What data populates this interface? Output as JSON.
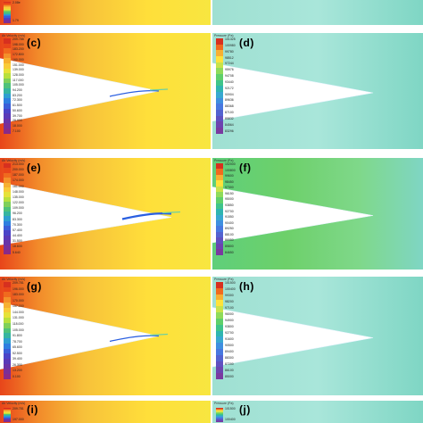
{
  "figure": {
    "panels": [
      {
        "id": "top-left",
        "label": "",
        "field": "velocity",
        "variable_title": "",
        "partial": "top",
        "legend_values": [
          "2.08e",
          "1.79"
        ]
      },
      {
        "id": "top-right",
        "label": "",
        "field": "pressure",
        "variable_title": "",
        "partial": "top",
        "legend_values": []
      },
      {
        "id": "c",
        "label": "(c)",
        "field": "velocity",
        "variable_title": "Air Velocity (m/s)",
        "legend_values": [
          "209.788",
          "198.000",
          "183.200",
          "172.800",
          "160.000",
          "151.000",
          "139.000",
          "128.000",
          "117.000",
          "105.000",
          "94.200",
          "83.200",
          "72.300",
          "61.500",
          "50.600",
          "39.700",
          "28.900",
          "18.000",
          "7.100"
        ]
      },
      {
        "id": "d",
        "label": "(d)",
        "field": "pressure",
        "variable_title": "Pressure (Pa)",
        "legend_values": [
          "101325",
          "100980",
          "99780",
          "98512",
          "97244",
          "95976",
          "94708",
          "93440",
          "92172",
          "90904",
          "89636",
          "88368",
          "87100",
          "85832",
          "84564",
          "83296"
        ]
      },
      {
        "id": "e",
        "label": "(e)",
        "field": "velocity",
        "variable_title": "Air Velocity (m/s)",
        "legend_values": [
          "213.000",
          "200.000",
          "187.000",
          "174.000",
          "161.000",
          "148.000",
          "135.000",
          "122.000",
          "109.000",
          "96.200",
          "83.300",
          "70.300",
          "57.400",
          "44.400",
          "31.500",
          "18.600",
          "5.640"
        ]
      },
      {
        "id": "f",
        "label": "(f)",
        "field": "pressure",
        "variable_title": "Pressure (Pa)",
        "legend_values": [
          "102000",
          "100800",
          "99600",
          "98450",
          "97300",
          "96150",
          "95000",
          "93850",
          "92700",
          "91550",
          "90400",
          "89250",
          "88100",
          "86950",
          "85800",
          "84650"
        ]
      },
      {
        "id": "g",
        "label": "(g)",
        "field": "velocity",
        "variable_title": "Air Velocity (m/s)",
        "legend_values": [
          "209.781",
          "196.000",
          "183.000",
          "170.000",
          "157.000",
          "144.000",
          "131.000",
          "118.000",
          "105.000",
          "91.800",
          "78.700",
          "65.600",
          "52.500",
          "39.400",
          "26.300",
          "13.200",
          "0.100"
        ]
      },
      {
        "id": "h",
        "label": "(h)",
        "field": "pressure",
        "variable_title": "Pressure (Pa)",
        "legend_values": [
          "101500",
          "100400",
          "99300",
          "98200",
          "97100",
          "96000",
          "94900",
          "93800",
          "92700",
          "91600",
          "90500",
          "89400",
          "88300",
          "87200",
          "86100",
          "85000"
        ]
      },
      {
        "id": "i",
        "label": "(i)",
        "field": "velocity",
        "variable_title": "Air Velocity (m/s)",
        "partial": "bottom",
        "legend_values": [
          "209.781",
          "197.000"
        ]
      },
      {
        "id": "j",
        "label": "(j)",
        "field": "pressure",
        "variable_title": "Pressure (Pa)",
        "partial": "bottom",
        "legend_values": [
          "101500",
          "100400"
        ]
      }
    ]
  },
  "colors": {
    "velocity_hot": "#e8451a",
    "velocity_mid": "#f7c13a",
    "velocity_warm": "#ffdf3a",
    "pressure_light": "#9fe0d2",
    "pressure_mid": "#7fd6c4",
    "pressure_green": "#6dd06a",
    "body": "#ffffff"
  }
}
